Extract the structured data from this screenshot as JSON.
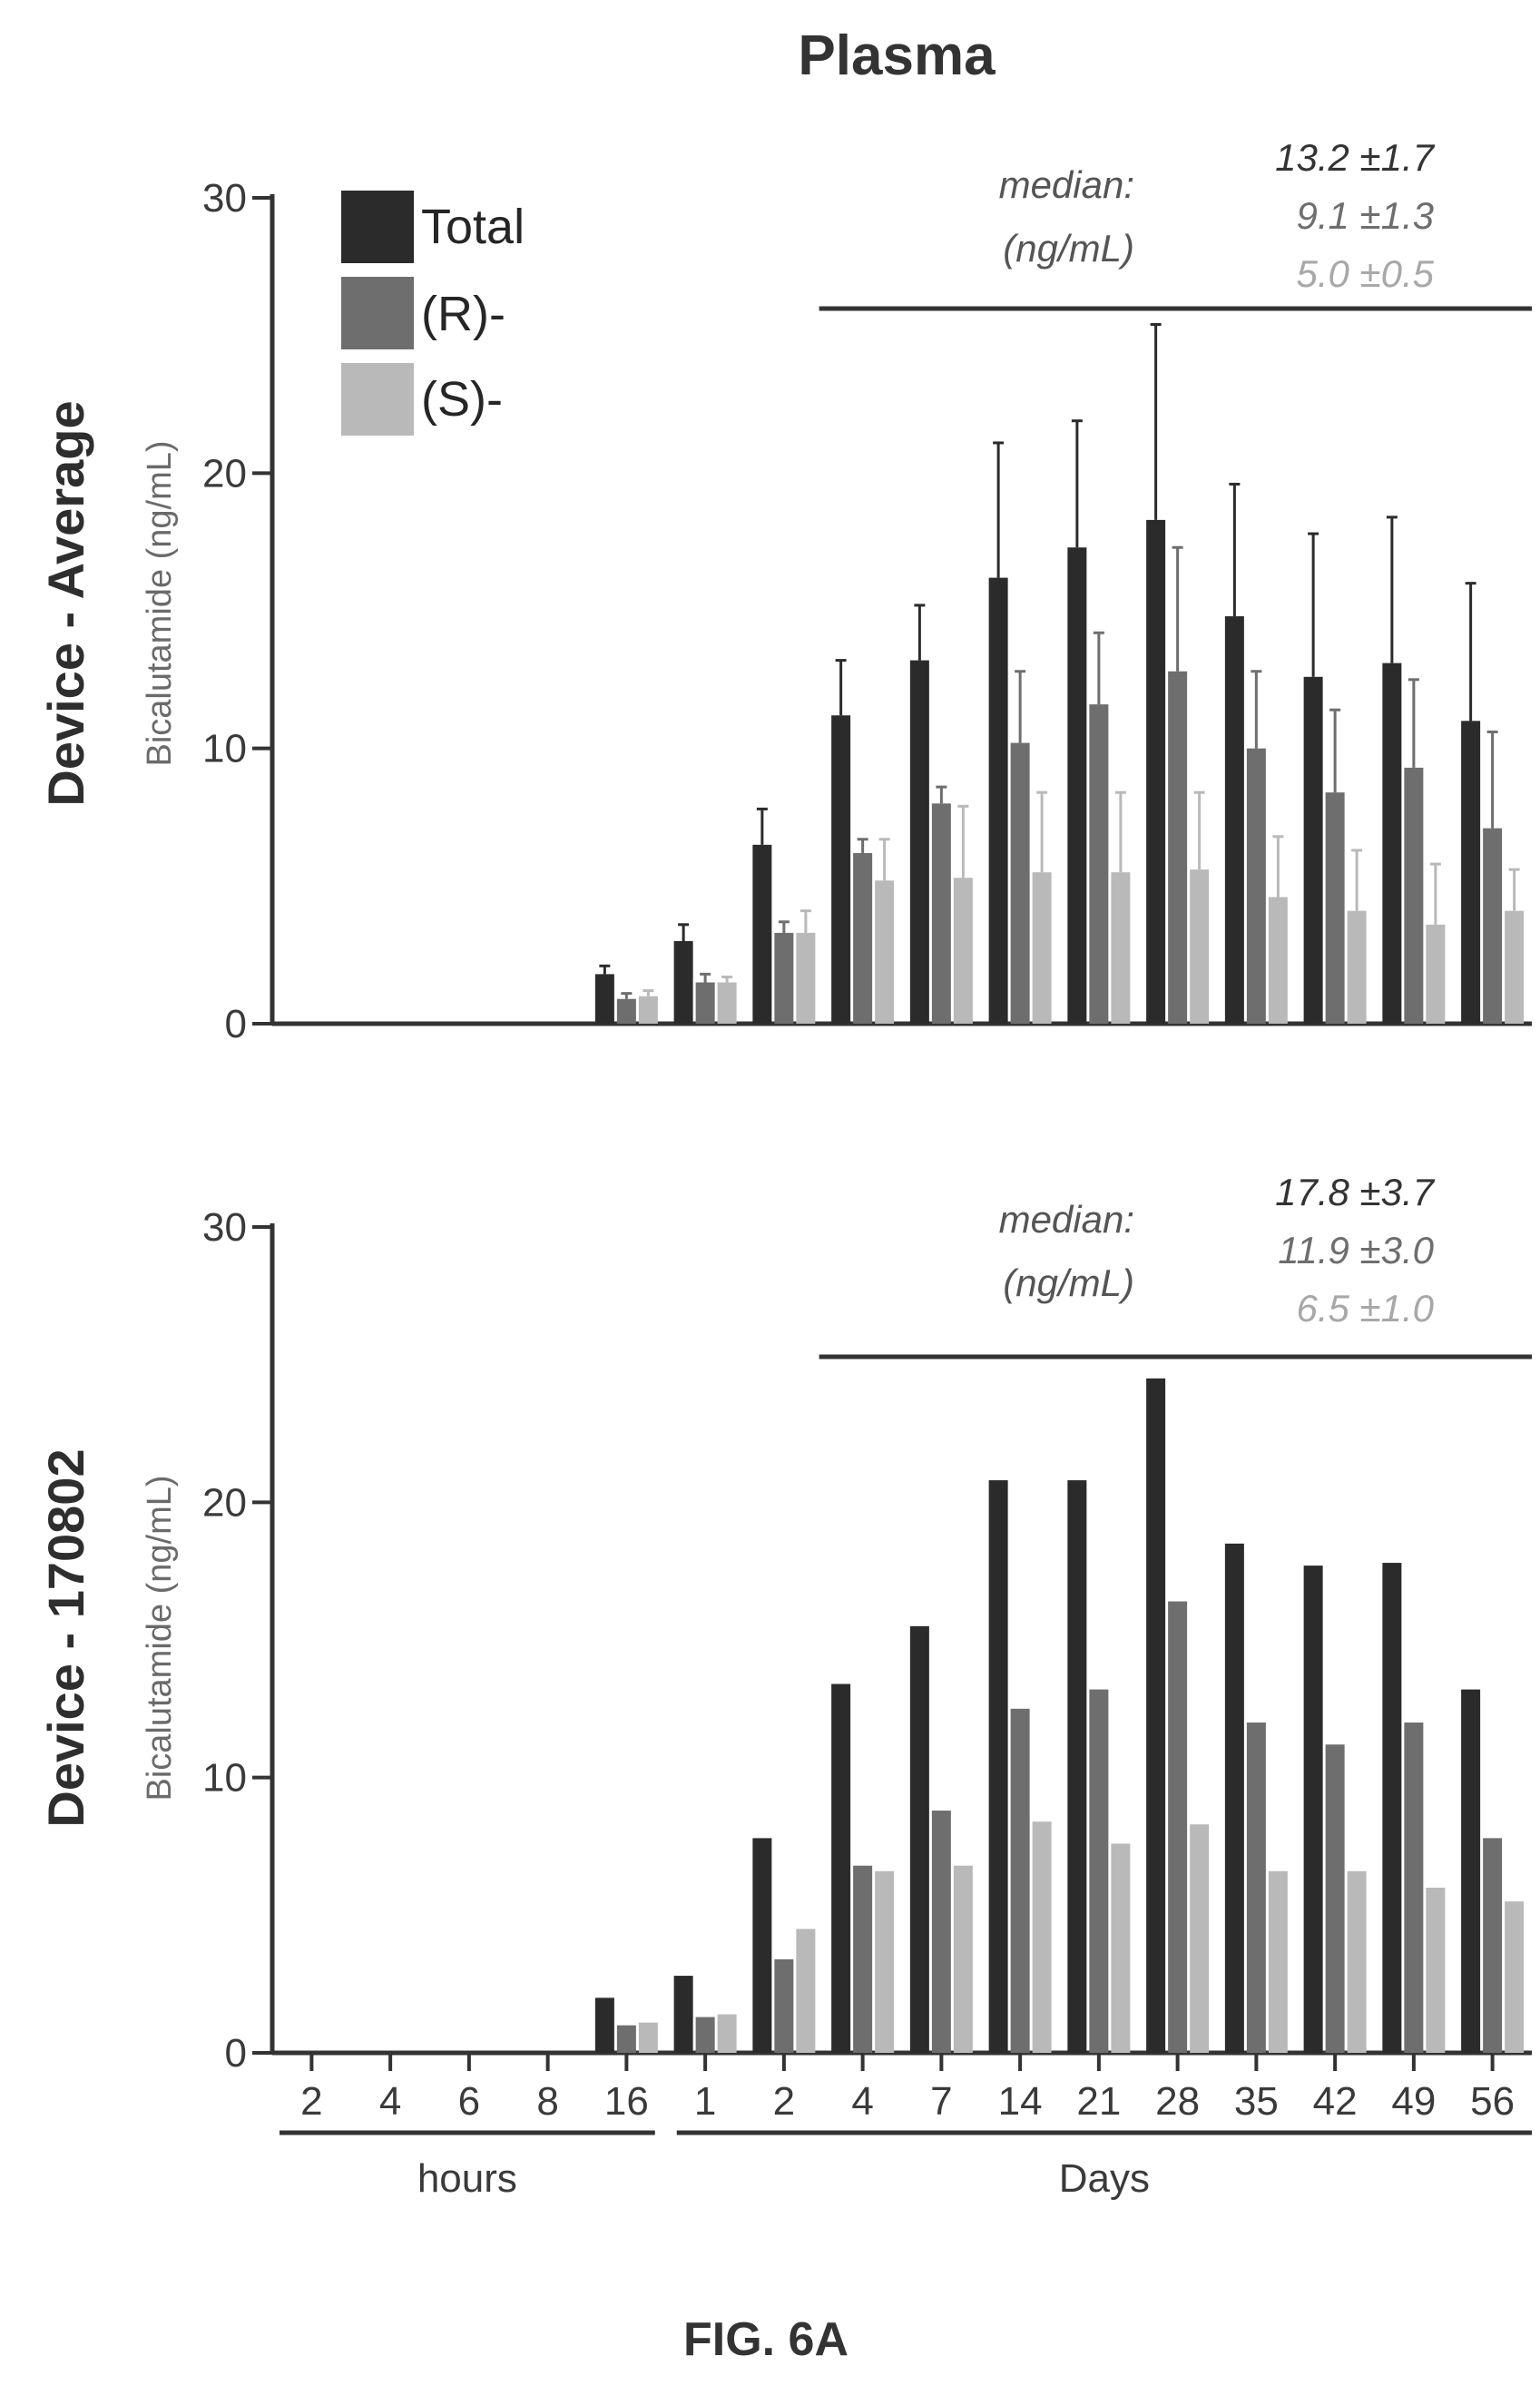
{
  "title": "Plasma",
  "figure_label": "FIG. 6A",
  "series_names": [
    "Total",
    "(R)-",
    "(S)-"
  ],
  "colors": {
    "Total": "#2b2b2b",
    "R": "#6e6e6e",
    "S": "#b9b9b9",
    "axis": "#333333"
  },
  "x_group_labels": {
    "hours": "hours",
    "days": "Days"
  },
  "chart_data": [
    {
      "type": "bar",
      "title": "Plasma",
      "panel_label": "Device - Average",
      "ylabel": "Bicalutamide (ng/mL)",
      "ylim": [
        0,
        30
      ],
      "yticks": [
        "0",
        "10",
        "20",
        "30"
      ],
      "categories": [
        "2",
        "4",
        "6",
        "8",
        "16",
        "1",
        "2",
        "4",
        "7",
        "14",
        "21",
        "28",
        "35",
        "42",
        "49",
        "56"
      ],
      "category_groups": [
        "hours",
        "hours",
        "hours",
        "hours",
        "hours",
        "Days",
        "Days",
        "Days",
        "Days",
        "Days",
        "Days",
        "Days",
        "Days",
        "Days",
        "Days",
        "Days"
      ],
      "legend": "top-left",
      "series": [
        {
          "name": "Total",
          "values": [
            0,
            0,
            0,
            0,
            1.8,
            3.0,
            6.5,
            11.2,
            13.2,
            16.2,
            17.3,
            18.3,
            14.8,
            12.6,
            13.1,
            11.0
          ],
          "error": [
            0,
            0,
            0,
            0,
            0.3,
            0.6,
            1.3,
            2.0,
            2.0,
            4.9,
            4.6,
            7.1,
            4.8,
            5.2,
            5.3,
            5.0
          ]
        },
        {
          "name": "(R)-",
          "values": [
            0,
            0,
            0,
            0,
            0.9,
            1.5,
            3.3,
            6.2,
            8.0,
            10.2,
            11.6,
            12.8,
            10.0,
            8.4,
            9.3,
            7.1
          ],
          "error": [
            0,
            0,
            0,
            0,
            0.2,
            0.3,
            0.4,
            0.5,
            0.6,
            2.6,
            2.6,
            4.5,
            2.8,
            3.0,
            3.2,
            3.5
          ]
        },
        {
          "name": "(S)-",
          "values": [
            0,
            0,
            0,
            0,
            1.0,
            1.5,
            3.3,
            5.2,
            5.3,
            5.5,
            5.5,
            5.6,
            4.6,
            4.1,
            3.6,
            4.1
          ],
          "error": [
            0,
            0,
            0,
            0,
            0.2,
            0.2,
            0.8,
            1.5,
            2.6,
            2.9,
            2.9,
            2.8,
            2.2,
            2.2,
            2.2,
            1.5
          ]
        }
      ],
      "median_annotation": {
        "label_line1": "median:",
        "label_line2": "(ng/mL)",
        "values": [
          "13.2 ±1.7",
          "9.1 ±1.3",
          "5.0 ±0.5"
        ],
        "range_start_category": "4"
      }
    },
    {
      "type": "bar",
      "panel_label": "Device - 170802",
      "ylabel": "Bicalutamide (ng/mL)",
      "ylim": [
        0,
        30
      ],
      "yticks": [
        "0",
        "10",
        "20",
        "30"
      ],
      "categories": [
        "2",
        "4",
        "6",
        "8",
        "16",
        "1",
        "2",
        "4",
        "7",
        "14",
        "21",
        "28",
        "35",
        "42",
        "49",
        "56"
      ],
      "category_groups": [
        "hours",
        "hours",
        "hours",
        "hours",
        "hours",
        "Days",
        "Days",
        "Days",
        "Days",
        "Days",
        "Days",
        "Days",
        "Days",
        "Days",
        "Days",
        "Days"
      ],
      "series": [
        {
          "name": "Total",
          "values": [
            0,
            0,
            0,
            0,
            2.0,
            2.8,
            7.8,
            13.4,
            15.5,
            20.8,
            20.8,
            24.5,
            18.5,
            17.7,
            17.8,
            13.2
          ]
        },
        {
          "name": "(R)-",
          "values": [
            0,
            0,
            0,
            0,
            1.0,
            1.3,
            3.4,
            6.8,
            8.8,
            12.5,
            13.2,
            16.4,
            12.0,
            11.2,
            12.0,
            7.8
          ]
        },
        {
          "name": "(S)-",
          "values": [
            0,
            0,
            0,
            0,
            1.1,
            1.4,
            4.5,
            6.6,
            6.8,
            8.4,
            7.6,
            8.3,
            6.6,
            6.6,
            6.0,
            5.5
          ]
        }
      ],
      "median_annotation": {
        "label_line1": "median:",
        "label_line2": "(ng/mL)",
        "values": [
          "17.8 ±3.7",
          "11.9 ±3.0",
          "6.5 ±1.0"
        ],
        "range_start_category": "4"
      }
    }
  ]
}
